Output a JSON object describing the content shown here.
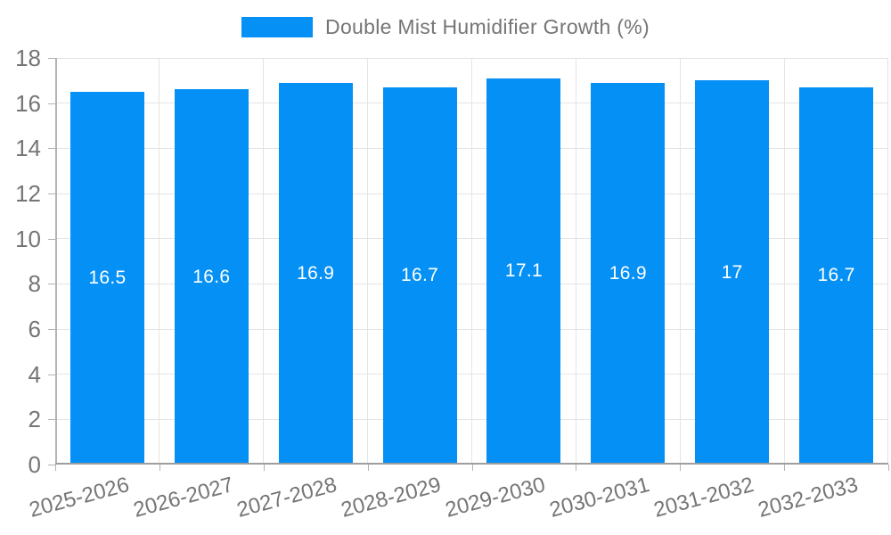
{
  "legend": {
    "label": "Double Mist Humidifier Growth (%)"
  },
  "colors": {
    "bar": "#0590f5",
    "value_label": "#ffffff",
    "axis_text": "#757575",
    "grid": "#e4e4e4",
    "axis_line": "#9e9e9e"
  },
  "chart_data": {
    "type": "bar",
    "title": "",
    "xlabel": "",
    "ylabel": "",
    "categories": [
      "2025-2026",
      "2026-2027",
      "2027-2028",
      "2028-2029",
      "2029-2030",
      "2030-2031",
      "2031-2032",
      "2032-2033"
    ],
    "values": [
      16.5,
      16.6,
      16.9,
      16.7,
      17.1,
      16.9,
      17,
      16.7
    ],
    "value_labels": [
      "16.5",
      "16.6",
      "16.9",
      "16.7",
      "17.1",
      "16.9",
      "17",
      "16.7"
    ],
    "series_name": "Double Mist Humidifier Growth (%)",
    "ylim": [
      0,
      18
    ],
    "yticks": [
      0,
      2,
      4,
      6,
      8,
      10,
      12,
      14,
      16,
      18
    ],
    "grid": true,
    "legend_position": "top",
    "bar_label_position": "inside-middle",
    "x_label_rotation_deg": -15
  }
}
